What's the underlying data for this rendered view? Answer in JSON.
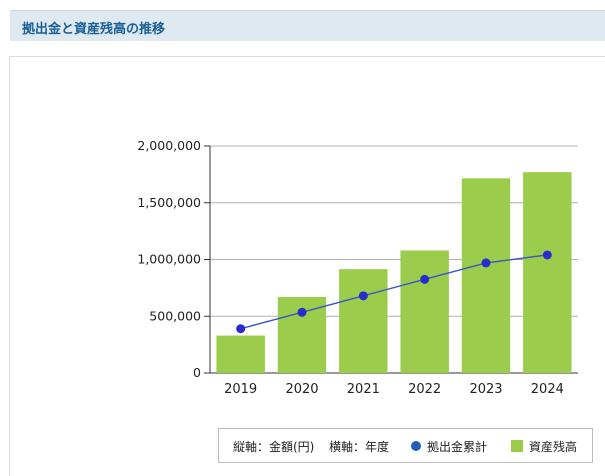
{
  "header": {
    "title": "拠出金と資産残高の推移"
  },
  "legend": {
    "vertical_axis_note": "縦軸：金額(円)",
    "horizontal_axis_note": "横軸：年度",
    "line_label": "拠出金累計",
    "bar_label": "資産残高"
  },
  "colors": {
    "bar": "#9ccc4b",
    "line": "#3a55c8",
    "marker": "#2b2bd0",
    "header_text": "#1a5f94"
  },
  "chart_data": {
    "type": "bar",
    "categories": [
      "2019",
      "2020",
      "2021",
      "2022",
      "2023",
      "2024"
    ],
    "series": [
      {
        "name": "資産残高",
        "type": "bar",
        "values": [
          330000,
          670000,
          915000,
          1080000,
          1715000,
          1770000
        ]
      },
      {
        "name": "拠出金累計",
        "type": "line",
        "values": [
          390000,
          535000,
          680000,
          825000,
          970000,
          1040000
        ]
      }
    ],
    "ylim": [
      0,
      2000000
    ],
    "yticks": [
      "0",
      "500,000",
      "1,000,000",
      "1,500,000",
      "2,000,000"
    ],
    "grid": true,
    "legend_position": "bottom"
  }
}
